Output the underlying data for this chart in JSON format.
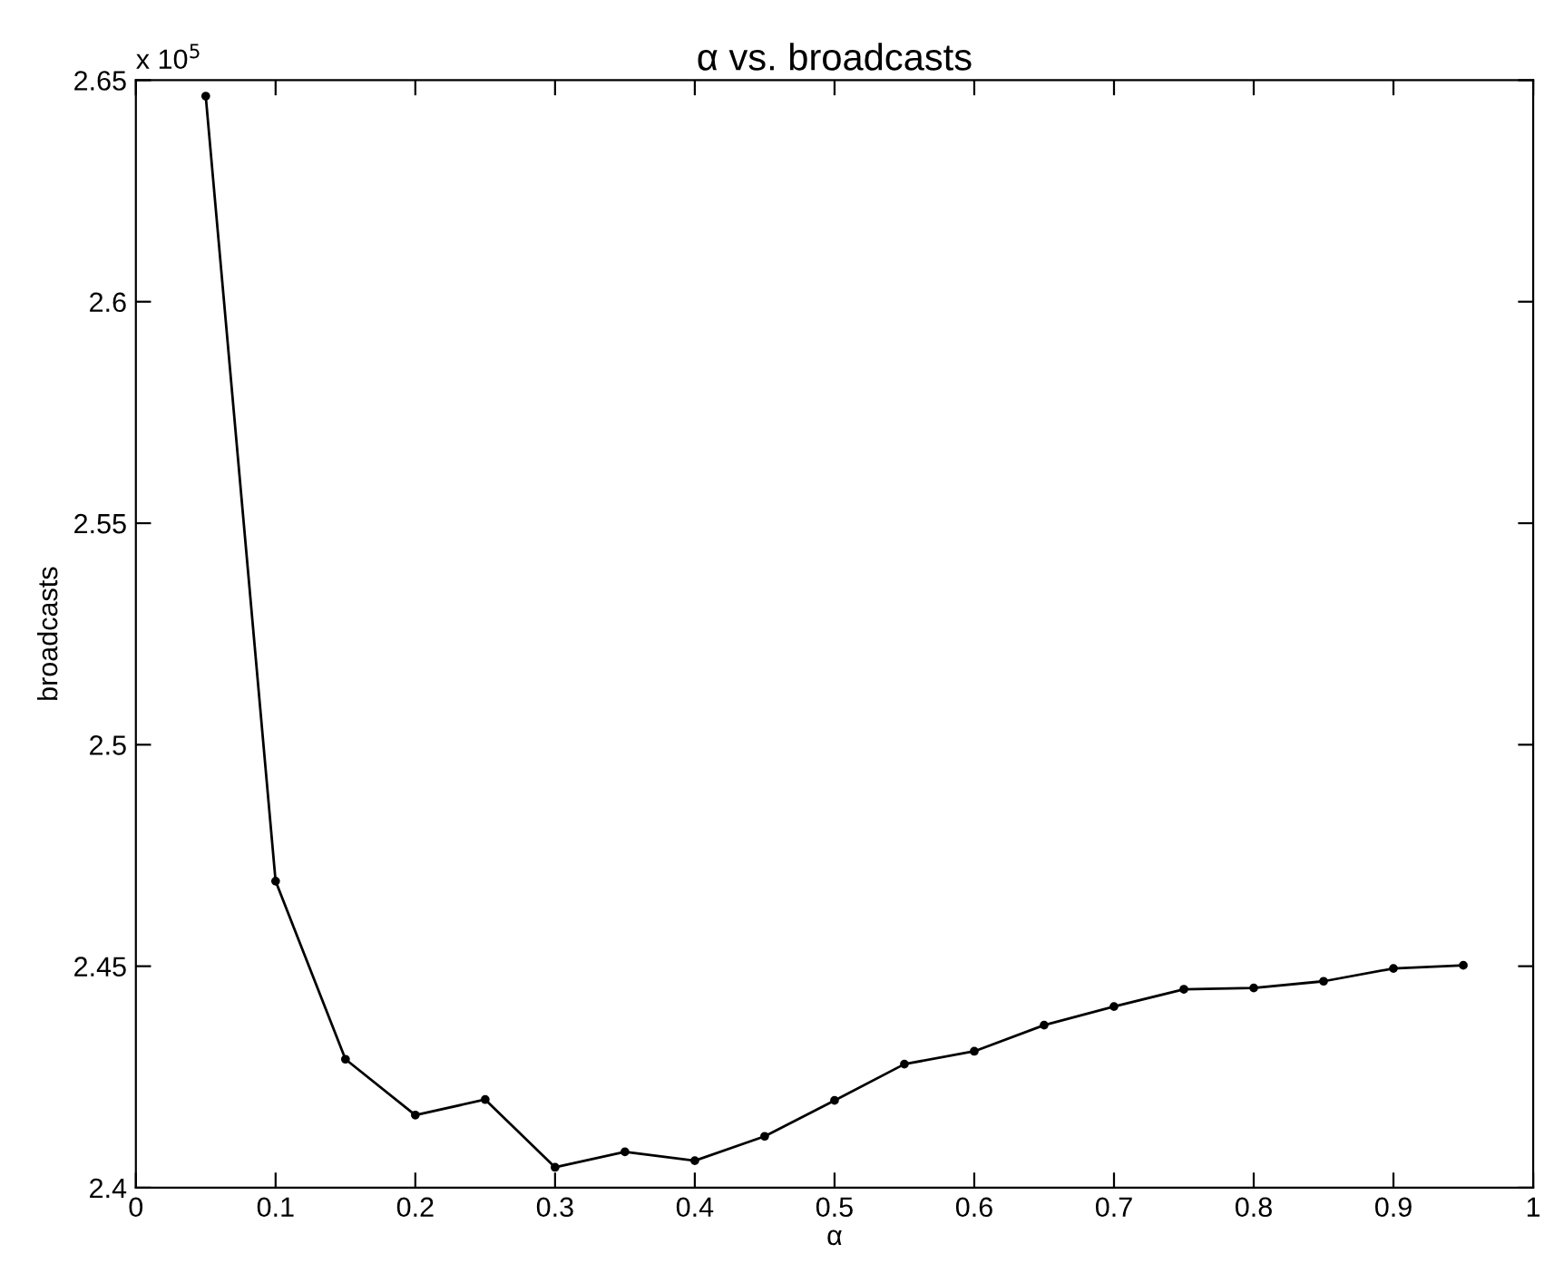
{
  "chart_data": {
    "type": "line",
    "title": "α vs. broadcasts",
    "xlabel": "α",
    "ylabel": "broadcasts",
    "annotations": [
      "x 10$^{5}$"
    ],
    "x": [
      0.05,
      0.1,
      0.15,
      0.2,
      0.25,
      0.3,
      0.35,
      0.4,
      0.45,
      0.5,
      0.55,
      0.6,
      0.65,
      0.7,
      0.75,
      0.8,
      0.85,
      0.9,
      0.95
    ],
    "series": [
      {
        "color": "#000000",
        "values": [
          2.6464,
          2.4692,
          2.429,
          2.4164,
          2.4199,
          2.4046,
          2.4081,
          2.4061,
          2.4116,
          2.4197,
          2.4279,
          2.4308,
          2.4367,
          2.4409,
          2.4448,
          2.4451,
          2.4466,
          2.4495,
          2.4502
        ]
      }
    ],
    "xlim": [
      0,
      1
    ],
    "ylim": [
      2.4,
      2.65
    ],
    "xticks": [
      0,
      0.1,
      0.2,
      0.3,
      0.4,
      0.5,
      0.6,
      0.7,
      0.8,
      0.9,
      1
    ],
    "yticks": [
      2.4,
      2.45,
      2.5,
      2.55,
      2.6,
      2.65
    ],
    "grid": false,
    "legend": false,
    "marker": "circle",
    "line_style": "solid"
  }
}
